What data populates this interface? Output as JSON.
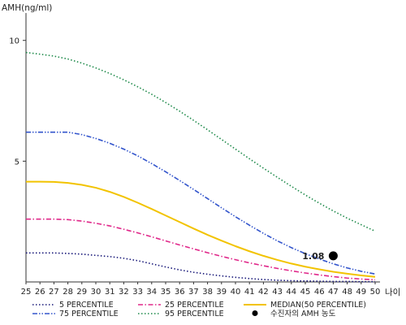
{
  "chart_data": {
    "type": "line",
    "ylabel": "AMH(ng/ml)",
    "xlabel": "나이",
    "xlim": [
      25,
      50
    ],
    "ylim": [
      0,
      11
    ],
    "yticks": [
      5,
      10
    ],
    "x": [
      25,
      26,
      27,
      28,
      29,
      30,
      31,
      32,
      33,
      34,
      35,
      36,
      37,
      38,
      39,
      40,
      41,
      42,
      43,
      44,
      45,
      46,
      47,
      48,
      49,
      50
    ],
    "series": [
      {
        "name": "5 PERCENTILE",
        "color": "#1a1a7a",
        "dash": "dot",
        "values": [
          1.2,
          1.2,
          1.2,
          1.18,
          1.15,
          1.1,
          1.05,
          0.98,
          0.88,
          0.75,
          0.62,
          0.5,
          0.4,
          0.32,
          0.25,
          0.19,
          0.14,
          0.1,
          0.07,
          0.05,
          0.04,
          0.03,
          0.02,
          0.02,
          0.01,
          0.01
        ]
      },
      {
        "name": "25 PERCENTILE",
        "color": "#e0288a",
        "dash": "dashdot",
        "values": [
          2.6,
          2.6,
          2.6,
          2.58,
          2.52,
          2.43,
          2.32,
          2.18,
          2.03,
          1.87,
          1.7,
          1.53,
          1.37,
          1.21,
          1.06,
          0.92,
          0.79,
          0.67,
          0.56,
          0.46,
          0.37,
          0.29,
          0.22,
          0.16,
          0.12,
          0.09
        ]
      },
      {
        "name": "75 PERCENTILE",
        "color": "#3355cc",
        "dash": "dashdotdot",
        "values": [
          6.2,
          6.2,
          6.2,
          6.2,
          6.1,
          5.94,
          5.74,
          5.5,
          5.22,
          4.9,
          4.56,
          4.2,
          3.83,
          3.45,
          3.07,
          2.7,
          2.35,
          2.01,
          1.7,
          1.42,
          1.17,
          0.95,
          0.75,
          0.58,
          0.44,
          0.33
        ]
      },
      {
        "name": "95 PERCENTILE",
        "color": "#1e8a4a",
        "dash": "dot",
        "values": [
          9.5,
          9.43,
          9.35,
          9.23,
          9.06,
          8.86,
          8.63,
          8.37,
          8.08,
          7.77,
          7.43,
          7.07,
          6.69,
          6.3,
          5.9,
          5.5,
          5.1,
          4.71,
          4.33,
          3.96,
          3.6,
          3.26,
          2.94,
          2.64,
          2.37,
          2.1
        ]
      },
      {
        "name": "MEDIAN(50 PERCENTILE)",
        "color": "#f2c300",
        "dash": "solid",
        "values": [
          4.15,
          4.15,
          4.14,
          4.1,
          4.02,
          3.9,
          3.73,
          3.52,
          3.28,
          3.02,
          2.75,
          2.48,
          2.21,
          1.95,
          1.71,
          1.48,
          1.27,
          1.08,
          0.91,
          0.76,
          0.63,
          0.52,
          0.42,
          0.34,
          0.27,
          0.21
        ]
      }
    ],
    "points": [
      {
        "name": "수진자의 AMH 농도",
        "x": 47,
        "y": 1.08,
        "label": "1.08",
        "color": "#000000"
      }
    ],
    "legend_position": "bottom",
    "grid": false
  }
}
